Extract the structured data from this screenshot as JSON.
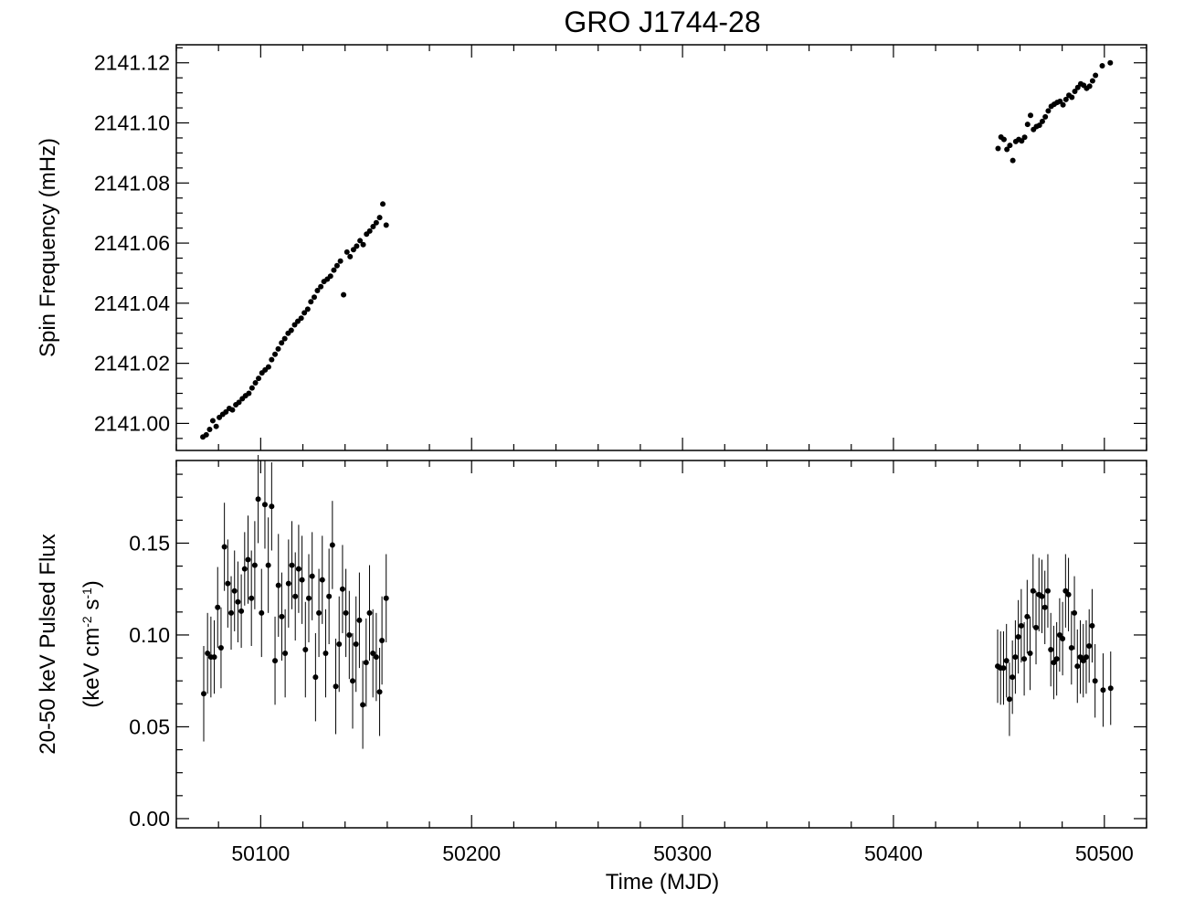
{
  "chart_data": {
    "title": "GRO J1744-28",
    "xlabel": "Time (MJD)",
    "xlim": [
      50060,
      50520
    ],
    "xticks": [
      50100,
      50200,
      50300,
      50400,
      50500
    ],
    "xtick_labels": [
      "50100",
      "50200",
      "50300",
      "50400",
      "50500"
    ],
    "panels": [
      {
        "type": "scatter",
        "ylabel": "Spin Frequency (mHz)",
        "ylim": [
          2140.991,
          2141.126
        ],
        "yticks": [
          2141.0,
          2141.02,
          2141.04,
          2141.06,
          2141.08,
          2141.1,
          2141.12
        ],
        "ytick_labels": [
          "2141.00",
          "2141.02",
          "2141.04",
          "2141.06",
          "2141.08",
          "2141.10",
          "2141.12"
        ],
        "color": "#000000",
        "points": [
          [
            50072.6,
            2140.9955
          ],
          [
            50074.2,
            2140.9962
          ],
          [
            50075.8,
            2140.998
          ],
          [
            50077.3,
            2141.0009
          ],
          [
            50078.9,
            2140.999
          ],
          [
            50080.4,
            2141.002
          ],
          [
            50082.0,
            2141.003
          ],
          [
            50083.5,
            2141.0038
          ],
          [
            50085.1,
            2141.005
          ],
          [
            50086.6,
            2141.0045
          ],
          [
            50088.2,
            2141.0062
          ],
          [
            50089.7,
            2141.007
          ],
          [
            50091.3,
            2141.0082
          ],
          [
            50092.8,
            2141.0092
          ],
          [
            50094.4,
            2141.01
          ],
          [
            50095.9,
            2141.0118
          ],
          [
            50097.5,
            2141.0135
          ],
          [
            50099.0,
            2141.015
          ],
          [
            50100.6,
            2141.0168
          ],
          [
            50102.1,
            2141.0178
          ],
          [
            50103.7,
            2141.0188
          ],
          [
            50105.2,
            2141.0212
          ],
          [
            50106.8,
            2141.023
          ],
          [
            50108.3,
            2141.0248
          ],
          [
            50109.9,
            2141.0268
          ],
          [
            50111.4,
            2141.0282
          ],
          [
            50113.0,
            2141.03
          ],
          [
            50114.5,
            2141.031
          ],
          [
            50116.1,
            2141.0328
          ],
          [
            50117.6,
            2141.034
          ],
          [
            50119.2,
            2141.035
          ],
          [
            50120.7,
            2141.0368
          ],
          [
            50122.3,
            2141.038
          ],
          [
            50123.8,
            2141.0405
          ],
          [
            50125.4,
            2141.042
          ],
          [
            50126.9,
            2141.0442
          ],
          [
            50128.5,
            2141.0455
          ],
          [
            50130.0,
            2141.0472
          ],
          [
            50131.6,
            2141.048
          ],
          [
            50133.1,
            2141.049
          ],
          [
            50134.7,
            2141.051
          ],
          [
            50136.2,
            2141.0525
          ],
          [
            50137.8,
            2141.054
          ],
          [
            50139.3,
            2141.0428
          ],
          [
            50140.9,
            2141.057
          ],
          [
            50142.4,
            2141.0555
          ],
          [
            50144.0,
            2141.0578
          ],
          [
            50145.5,
            2141.059
          ],
          [
            50147.1,
            2141.0608
          ],
          [
            50148.6,
            2141.0595
          ],
          [
            50150.2,
            2141.063
          ],
          [
            50151.7,
            2141.064
          ],
          [
            50153.3,
            2141.0655
          ],
          [
            50154.8,
            2141.0668
          ],
          [
            50156.4,
            2141.0685
          ],
          [
            50157.9,
            2141.073
          ],
          [
            50159.5,
            2141.066
          ],
          [
            50449.6,
            2141.0915
          ],
          [
            50451.0,
            2141.0953
          ],
          [
            50452.4,
            2141.0945
          ],
          [
            50453.8,
            2141.0912
          ],
          [
            50455.2,
            2141.0925
          ],
          [
            50456.6,
            2141.0875
          ],
          [
            50458.0,
            2141.0938
          ],
          [
            50459.4,
            2141.0945
          ],
          [
            50460.8,
            2141.094
          ],
          [
            50462.2,
            2141.0952
          ],
          [
            50463.6,
            2141.0995
          ],
          [
            50465.0,
            2141.1025
          ],
          [
            50466.4,
            2141.0978
          ],
          [
            50467.8,
            2141.0988
          ],
          [
            50469.2,
            2141.0992
          ],
          [
            50470.6,
            2141.1005
          ],
          [
            50472.0,
            2141.102
          ],
          [
            50473.4,
            2141.104
          ],
          [
            50474.8,
            2141.1055
          ],
          [
            50476.2,
            2141.1062
          ],
          [
            50477.6,
            2141.1068
          ],
          [
            50479.0,
            2141.1072
          ],
          [
            50480.4,
            2141.106
          ],
          [
            50481.8,
            2141.1078
          ],
          [
            50483.2,
            2141.1092
          ],
          [
            50484.6,
            2141.1085
          ],
          [
            50486.0,
            2141.1105
          ],
          [
            50487.4,
            2141.1118
          ],
          [
            50488.8,
            2141.113
          ],
          [
            50490.2,
            2141.1125
          ],
          [
            50491.6,
            2141.1115
          ],
          [
            50493.0,
            2141.1122
          ],
          [
            50494.4,
            2141.114
          ],
          [
            50495.8,
            2141.1158
          ],
          [
            50499.0,
            2141.119
          ],
          [
            50502.8,
            2141.12
          ]
        ]
      },
      {
        "type": "scatter",
        "ylabel": "20-50 keV Pulsed Flux",
        "ylabel2": "(keV cm-2 s-1)",
        "ylim": [
          -0.005,
          0.195
        ],
        "yticks": [
          0.0,
          0.05,
          0.1,
          0.15
        ],
        "ytick_labels": [
          "0.00",
          "0.05",
          "0.10",
          "0.15"
        ],
        "color": "#000000",
        "points": [
          [
            50073.0,
            0.068,
            0.026
          ],
          [
            50074.8,
            0.09,
            0.022
          ],
          [
            50076.4,
            0.088,
            0.022
          ],
          [
            50078.0,
            0.088,
            0.02
          ],
          [
            50079.6,
            0.115,
            0.022
          ],
          [
            50081.2,
            0.093,
            0.022
          ],
          [
            50082.8,
            0.148,
            0.024
          ],
          [
            50084.4,
            0.128,
            0.024
          ],
          [
            50086.0,
            0.112,
            0.02
          ],
          [
            50087.6,
            0.124,
            0.022
          ],
          [
            50089.2,
            0.118,
            0.022
          ],
          [
            50090.8,
            0.113,
            0.02
          ],
          [
            50092.4,
            0.136,
            0.02
          ],
          [
            50094.0,
            0.141,
            0.024
          ],
          [
            50095.6,
            0.12,
            0.026
          ],
          [
            50097.2,
            0.138,
            0.024
          ],
          [
            50098.8,
            0.174,
            0.024
          ],
          [
            50100.4,
            0.112,
            0.024
          ],
          [
            50102.0,
            0.171,
            0.024
          ],
          [
            50103.6,
            0.138,
            0.026
          ],
          [
            50105.2,
            0.17,
            0.024
          ],
          [
            50106.8,
            0.086,
            0.024
          ],
          [
            50108.4,
            0.127,
            0.028
          ],
          [
            50110.0,
            0.11,
            0.024
          ],
          [
            50111.6,
            0.09,
            0.024
          ],
          [
            50113.2,
            0.128,
            0.024
          ],
          [
            50114.8,
            0.138,
            0.024
          ],
          [
            50116.4,
            0.121,
            0.024
          ],
          [
            50118.0,
            0.136,
            0.024
          ],
          [
            50119.6,
            0.13,
            0.024
          ],
          [
            50121.2,
            0.092,
            0.026
          ],
          [
            50122.8,
            0.12,
            0.024
          ],
          [
            50124.4,
            0.132,
            0.024
          ],
          [
            50126.0,
            0.077,
            0.024
          ],
          [
            50127.6,
            0.112,
            0.024
          ],
          [
            50129.2,
            0.13,
            0.024
          ],
          [
            50130.8,
            0.09,
            0.024
          ],
          [
            50132.4,
            0.121,
            0.026
          ],
          [
            50134.0,
            0.149,
            0.024
          ],
          [
            50135.6,
            0.072,
            0.026
          ],
          [
            50137.2,
            0.095,
            0.026
          ],
          [
            50138.8,
            0.125,
            0.024
          ],
          [
            50140.4,
            0.112,
            0.024
          ],
          [
            50142.0,
            0.1,
            0.024
          ],
          [
            50143.6,
            0.075,
            0.026
          ],
          [
            50145.2,
            0.095,
            0.026
          ],
          [
            50146.8,
            0.108,
            0.026
          ],
          [
            50148.4,
            0.062,
            0.024
          ],
          [
            50150.0,
            0.085,
            0.024
          ],
          [
            50151.6,
            0.112,
            0.026
          ],
          [
            50153.2,
            0.09,
            0.024
          ],
          [
            50154.8,
            0.088,
            0.024
          ],
          [
            50156.4,
            0.069,
            0.024
          ],
          [
            50157.5,
            0.097,
            0.024
          ],
          [
            50159.5,
            0.12,
            0.024
          ],
          [
            50449.4,
            0.083,
            0.02
          ],
          [
            50450.8,
            0.082,
            0.02
          ],
          [
            50452.2,
            0.082,
            0.02
          ],
          [
            50453.6,
            0.086,
            0.02
          ],
          [
            50455.0,
            0.065,
            0.02
          ],
          [
            50456.4,
            0.077,
            0.02
          ],
          [
            50457.8,
            0.088,
            0.02
          ],
          [
            50459.2,
            0.099,
            0.02
          ],
          [
            50460.6,
            0.105,
            0.02
          ],
          [
            50462.0,
            0.087,
            0.02
          ],
          [
            50463.4,
            0.11,
            0.02
          ],
          [
            50464.8,
            0.09,
            0.02
          ],
          [
            50466.2,
            0.124,
            0.02
          ],
          [
            50467.6,
            0.104,
            0.02
          ],
          [
            50469.0,
            0.122,
            0.02
          ],
          [
            50470.4,
            0.121,
            0.02
          ],
          [
            50471.8,
            0.115,
            0.02
          ],
          [
            50473.2,
            0.124,
            0.02
          ],
          [
            50474.6,
            0.092,
            0.02
          ],
          [
            50476.0,
            0.085,
            0.02
          ],
          [
            50477.4,
            0.087,
            0.02
          ],
          [
            50478.8,
            0.1,
            0.02
          ],
          [
            50480.2,
            0.098,
            0.02
          ],
          [
            50481.6,
            0.124,
            0.02
          ],
          [
            50483.0,
            0.122,
            0.02
          ],
          [
            50484.4,
            0.093,
            0.02
          ],
          [
            50485.8,
            0.112,
            0.02
          ],
          [
            50487.2,
            0.083,
            0.02
          ],
          [
            50488.6,
            0.088,
            0.02
          ],
          [
            50490.0,
            0.086,
            0.02
          ],
          [
            50491.4,
            0.088,
            0.02
          ],
          [
            50492.8,
            0.094,
            0.02
          ],
          [
            50494.2,
            0.105,
            0.02
          ],
          [
            50495.6,
            0.075,
            0.02
          ],
          [
            50499.4,
            0.07,
            0.02
          ],
          [
            50503.0,
            0.071,
            0.02
          ]
        ]
      }
    ]
  }
}
